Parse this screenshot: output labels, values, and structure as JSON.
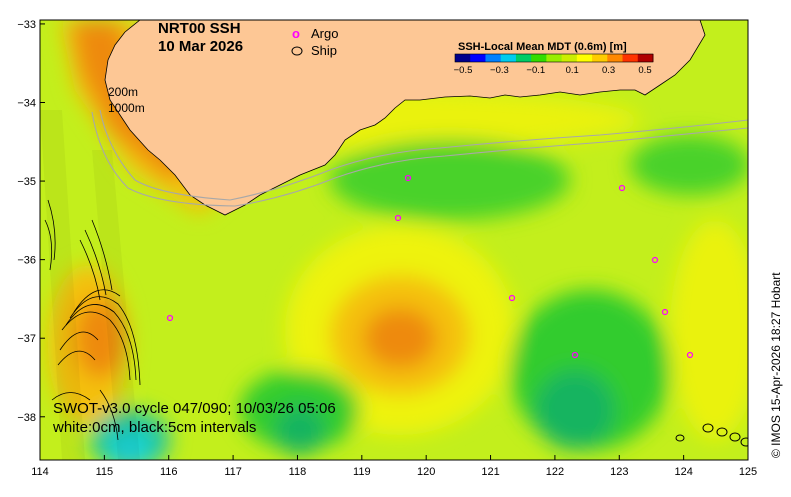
{
  "title": {
    "product": "NRT00 SSH",
    "date": "10 Mar 2026"
  },
  "legend": {
    "argo_symbol": "o",
    "argo_label": "Argo",
    "ship_label": "Ship"
  },
  "colorbar": {
    "title": "SSH-Local Mean MDT (0.6m) [m]",
    "ticks": [
      "−0.5",
      "−0.3",
      "−0.1",
      "0.1",
      "0.3",
      "0.5"
    ],
    "colors": [
      "#00008b",
      "#0000ff",
      "#0080ff",
      "#00ccee",
      "#00cc66",
      "#33dd00",
      "#99ee00",
      "#ccee00",
      "#ffff00",
      "#ffcc00",
      "#ff8800",
      "#ff3300",
      "#b00000"
    ]
  },
  "bathymetry_labels": {
    "shallow": "200m",
    "deep": "1000m"
  },
  "annotation": {
    "line1": "SWOT-v3.0 cycle 047/090; 10/03/26 05:06",
    "line2": "white:0cm, black:5cm intervals"
  },
  "credit": "© IMOS 15-Apr-2026 18:27 Hobart",
  "axes": {
    "x_ticks": [
      "114",
      "115",
      "116",
      "117",
      "118",
      "119",
      "120",
      "121",
      "122",
      "123",
      "124",
      "125"
    ],
    "y_ticks": [
      "−33",
      "−34",
      "−35",
      "−36",
      "−37",
      "−38"
    ],
    "lon_range": [
      114,
      125
    ],
    "lat_range": [
      -38.55,
      -32.95
    ]
  },
  "colors": {
    "land": "#fdc795",
    "ocean_base": "#c3ef1c",
    "high_anomaly": "#ee8a0a",
    "low_anomaly": "#12c65a",
    "argo": "#ff00ff"
  }
}
